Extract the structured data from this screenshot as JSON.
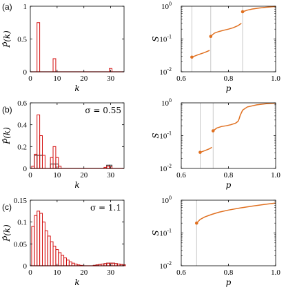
{
  "colors": {
    "red": "#d40f0f",
    "orange": "#e07020",
    "black": "#222222",
    "guide": "#bbbbbb",
    "axis": "#000000"
  },
  "chart_data": [
    {
      "panel": "(a)",
      "type": "bar",
      "subtype": "histogram",
      "xlabel": "k",
      "ylabel": "P̂(k)",
      "xlim": [
        0,
        35
      ],
      "ylim": [
        0,
        1
      ],
      "xticks": [
        "0",
        "10",
        "20",
        "30"
      ],
      "yticks": [
        "0",
        "0.5",
        "1"
      ],
      "bin_width": 1,
      "series": [
        {
          "color": "red",
          "bins": [
            [
              3,
              0.75
            ],
            [
              9,
              0.2
            ],
            [
              30,
              0.05
            ]
          ]
        }
      ],
      "annotation": ""
    },
    {
      "panel": "(a)",
      "type": "line",
      "xlabel": "p",
      "ylabel": "S",
      "yscale": "log",
      "xlim": [
        0.6,
        1.0
      ],
      "ylim": [
        0.01,
        1
      ],
      "xticks": [
        "0.6",
        "0.8",
        "1.0"
      ],
      "yticks": [
        "10",
        "10",
        "10"
      ],
      "ytick_exp": [
        "-2",
        "-1",
        "0"
      ],
      "guides": [
        0.645,
        0.725,
        0.86
      ],
      "segments": [
        {
          "x": [
            0.645,
            0.67,
            0.7,
            0.72
          ],
          "y": [
            0.028,
            0.033,
            0.039,
            0.045
          ]
        },
        {
          "x": [
            0.725,
            0.74,
            0.76,
            0.78,
            0.8,
            0.82,
            0.84,
            0.855
          ],
          "y": [
            0.12,
            0.15,
            0.17,
            0.185,
            0.2,
            0.22,
            0.255,
            0.3
          ]
        },
        {
          "x": [
            0.86,
            0.88,
            0.9,
            0.93,
            0.96,
            1.0
          ],
          "y": [
            0.68,
            0.76,
            0.82,
            0.88,
            0.93,
            0.98
          ]
        }
      ],
      "markers": [
        [
          0.645,
          0.028
        ],
        [
          0.725,
          0.12
        ],
        [
          0.86,
          0.68
        ]
      ]
    },
    {
      "panel": "(b)",
      "type": "bar",
      "subtype": "histogram",
      "xlabel": "k",
      "ylabel": "P̂(k)",
      "xlim": [
        0,
        35
      ],
      "ylim": [
        0,
        0.6
      ],
      "xticks": [
        "0",
        "10",
        "20",
        "30"
      ],
      "yticks": [
        "0",
        "0.2",
        "0.4",
        "0.6"
      ],
      "bin_width": 1,
      "series": [
        {
          "color": "black",
          "bins": [
            [
              2,
              0.12
            ],
            [
              3,
              0.12
            ],
            [
              4,
              0.12
            ],
            [
              8,
              0.04
            ],
            [
              9,
              0.04
            ],
            [
              10,
              0.04
            ],
            [
              29,
              0.03
            ],
            [
              30,
              0.03
            ]
          ]
        },
        {
          "color": "red",
          "bins": [
            [
              1,
              0.02
            ],
            [
              2,
              0.13
            ],
            [
              3,
              0.49
            ],
            [
              4,
              0.3
            ],
            [
              5,
              0.12
            ],
            [
              8,
              0.1
            ],
            [
              9,
              0.2
            ],
            [
              10,
              0.1
            ],
            [
              11,
              0.02
            ],
            [
              28,
              0.01
            ],
            [
              29,
              0.02
            ],
            [
              30,
              0.015
            ]
          ]
        }
      ],
      "annotation": "σ = 0.55"
    },
    {
      "panel": "(b)",
      "type": "line",
      "xlabel": "p",
      "ylabel": "S",
      "yscale": "log",
      "xlim": [
        0.6,
        1.0
      ],
      "ylim": [
        0.01,
        1
      ],
      "xticks": [
        "0.6",
        "0.8",
        "1.0"
      ],
      "yticks": [
        "10",
        "10",
        "10"
      ],
      "ytick_exp": [
        "-2",
        "-1",
        "0"
      ],
      "guides": [
        0.68,
        0.735
      ],
      "segments": [
        {
          "x": [
            0.68,
            0.7,
            0.72,
            0.73
          ],
          "y": [
            0.031,
            0.035,
            0.04,
            0.044
          ]
        },
        {
          "x": [
            0.735,
            0.75,
            0.77,
            0.79,
            0.81,
            0.83,
            0.84,
            0.845,
            0.85,
            0.86,
            0.88,
            0.92,
            0.96,
            1.0
          ],
          "y": [
            0.14,
            0.17,
            0.19,
            0.2,
            0.215,
            0.24,
            0.27,
            0.32,
            0.42,
            0.6,
            0.75,
            0.87,
            0.94,
            0.98
          ]
        }
      ],
      "markers": [
        [
          0.68,
          0.031
        ],
        [
          0.735,
          0.14
        ]
      ]
    },
    {
      "panel": "(c)",
      "type": "bar",
      "subtype": "histogram",
      "xlabel": "k",
      "ylabel": "P̂(k)",
      "xlim": [
        0,
        35
      ],
      "ylim": [
        0,
        0.15
      ],
      "xticks": [
        "0",
        "10",
        "20",
        "30"
      ],
      "yticks": [
        "0",
        "0.05",
        "0.1",
        "0.15"
      ],
      "bin_width": 1,
      "series": [
        {
          "color": "black",
          "bins": [
            [
              24,
              0.001
            ],
            [
              25,
              0.002
            ],
            [
              26,
              0.003
            ],
            [
              27,
              0.004
            ],
            [
              28,
              0.005
            ],
            [
              29,
              0.006
            ],
            [
              30,
              0.006
            ],
            [
              31,
              0.006
            ],
            [
              32,
              0.005
            ],
            [
              33,
              0.004
            ],
            [
              34,
              0.003
            ],
            [
              35,
              0.002
            ]
          ]
        },
        {
          "color": "red",
          "bins": [
            [
              1,
              0.09
            ],
            [
              2,
              0.115
            ],
            [
              3,
              0.125
            ],
            [
              4,
              0.12
            ],
            [
              5,
              0.1
            ],
            [
              6,
              0.08
            ],
            [
              7,
              0.068
            ],
            [
              8,
              0.055
            ],
            [
              9,
              0.045
            ],
            [
              10,
              0.037
            ],
            [
              11,
              0.03
            ],
            [
              12,
              0.024
            ],
            [
              13,
              0.018
            ],
            [
              14,
              0.013
            ],
            [
              15,
              0.009
            ],
            [
              16,
              0.006
            ],
            [
              17,
              0.004
            ],
            [
              18,
              0.002
            ],
            [
              19,
              0.001
            ],
            [
              24,
              0.001
            ],
            [
              25,
              0.002
            ],
            [
              26,
              0.003
            ],
            [
              27,
              0.004
            ],
            [
              28,
              0.005
            ],
            [
              29,
              0.006
            ],
            [
              30,
              0.006
            ],
            [
              31,
              0.006
            ],
            [
              32,
              0.005
            ],
            [
              33,
              0.004
            ],
            [
              34,
              0.003
            ],
            [
              35,
              0.002
            ]
          ]
        }
      ],
      "annotation": "σ = 1.1"
    },
    {
      "panel": "(c)",
      "type": "line",
      "xlabel": "p",
      "ylabel": "S",
      "yscale": "log",
      "xlim": [
        0.6,
        1.0
      ],
      "ylim": [
        0.01,
        1
      ],
      "xticks": [
        "0.6",
        "0.8",
        "1.0"
      ],
      "yticks": [
        "10",
        "10",
        "10"
      ],
      "ytick_exp": [
        "-2",
        "-1",
        "0"
      ],
      "guides": [
        0.665
      ],
      "segments": [
        {
          "x": [
            0.665,
            0.68,
            0.7,
            0.73,
            0.76,
            0.8,
            0.85,
            0.9,
            0.95,
            1.0
          ],
          "y": [
            0.2,
            0.26,
            0.31,
            0.37,
            0.43,
            0.5,
            0.58,
            0.66,
            0.74,
            0.82
          ]
        }
      ],
      "markers": [
        [
          0.665,
          0.2
        ]
      ]
    }
  ]
}
